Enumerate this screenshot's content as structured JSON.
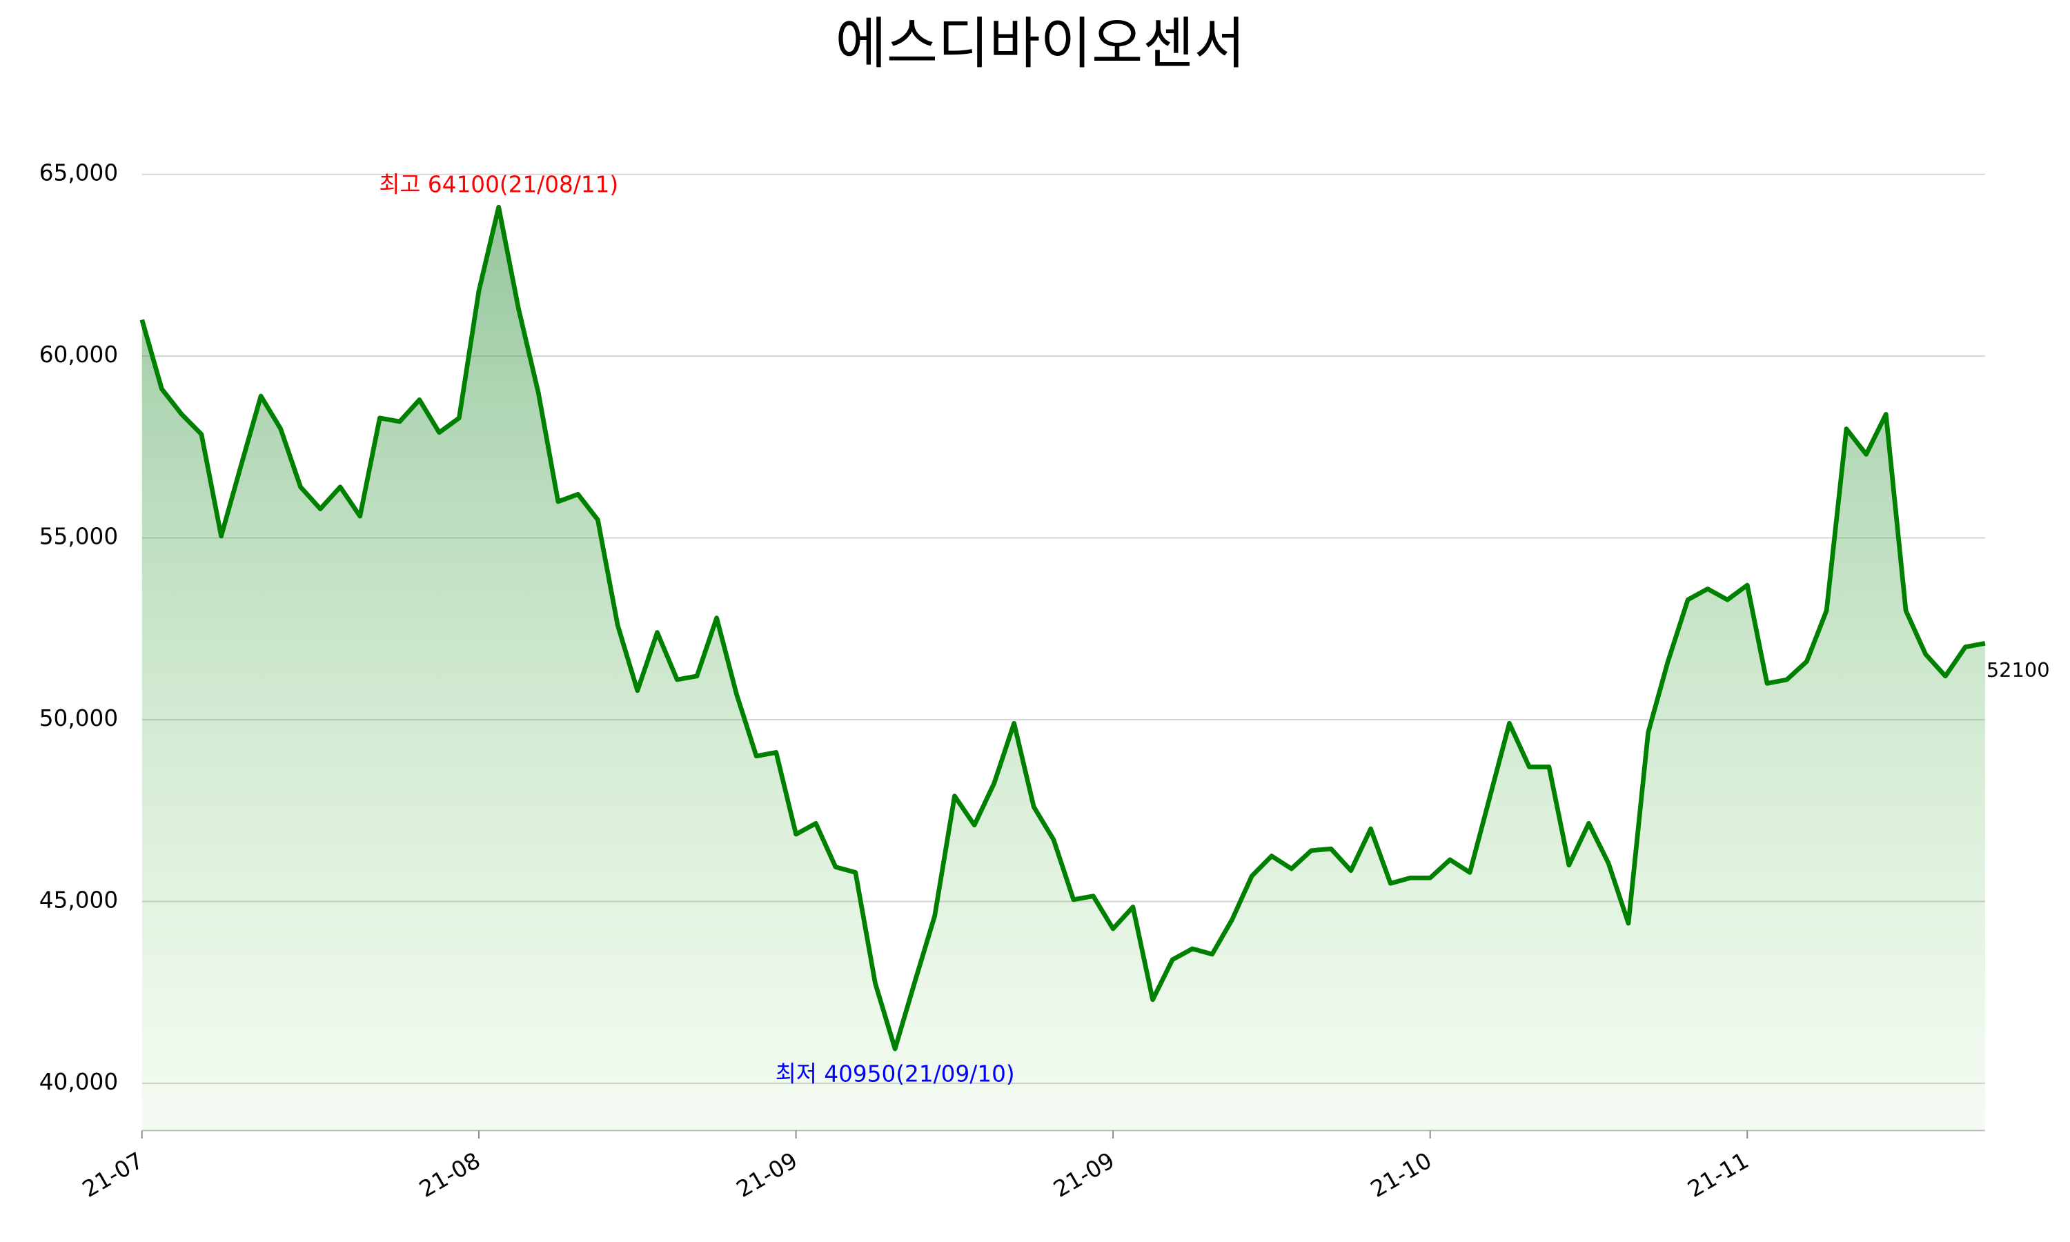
{
  "chart_data": {
    "type": "line",
    "title": "에스디바이오센서",
    "categories": [
      "21-07",
      null,
      null,
      null,
      null,
      null,
      null,
      null,
      null,
      null,
      null,
      null,
      null,
      null,
      null,
      null,
      null,
      "21-08",
      null,
      null,
      null,
      null,
      null,
      null,
      null,
      null,
      null,
      null,
      null,
      null,
      null,
      null,
      null,
      "21-09",
      null,
      null,
      null,
      null,
      null,
      null,
      null,
      null,
      null,
      null,
      null,
      null,
      null,
      null,
      null,
      "21-09",
      null,
      null,
      null,
      null,
      null,
      null,
      null,
      null,
      null,
      null,
      null,
      null,
      null,
      null,
      null,
      "21-10",
      null,
      null,
      null,
      null,
      null,
      null,
      null,
      null,
      null,
      null,
      null,
      null,
      null,
      null,
      null,
      "21-11",
      null,
      null,
      null,
      null,
      null,
      null,
      null,
      null,
      null,
      null,
      null,
      null
    ],
    "series": [
      {
        "color": "#008000",
        "values": [
          61000,
          59100,
          58400,
          57850,
          55050,
          57000,
          58900,
          58000,
          56400,
          55800,
          56400,
          55600,
          58300,
          58200,
          58800,
          57900,
          58300,
          61800,
          64100,
          61300,
          59000,
          56000,
          56200,
          55500,
          52600,
          50800,
          52400,
          51100,
          51200,
          52800,
          50700,
          49000,
          49100,
          46850,
          47150,
          45950,
          45800,
          42750,
          40950,
          42800,
          44600,
          47900,
          47100,
          48250,
          49900,
          47600,
          46700,
          45050,
          45150,
          44250,
          44850,
          42300,
          43400,
          43700,
          43550,
          44500,
          45700,
          46250,
          45900,
          46400,
          46450,
          45850,
          47000,
          45500,
          45650,
          45650,
          46150,
          45800,
          47850,
          49900,
          48700,
          48700,
          46000,
          47150,
          46050,
          44400,
          49650,
          51600,
          53300,
          53600,
          53300,
          53700,
          51000,
          51100,
          51600,
          53000,
          58000,
          57300,
          58400,
          53000,
          51800,
          51200,
          52000,
          52100
        ]
      }
    ],
    "ylim": [
      38700,
      66000
    ],
    "yticks": [
      {
        "value": 40000,
        "label": "40,000"
      },
      {
        "value": 45000,
        "label": "45,000"
      },
      {
        "value": 50000,
        "label": "50,000"
      },
      {
        "value": 55000,
        "label": "55,000"
      },
      {
        "value": 60000,
        "label": "60,000"
      },
      {
        "value": 65000,
        "label": "65,000"
      }
    ],
    "grid": true,
    "annotations": {
      "max": "최고 64100(21/08/11)",
      "min": "최저 40950(21/09/10)",
      "last": "52100"
    }
  }
}
